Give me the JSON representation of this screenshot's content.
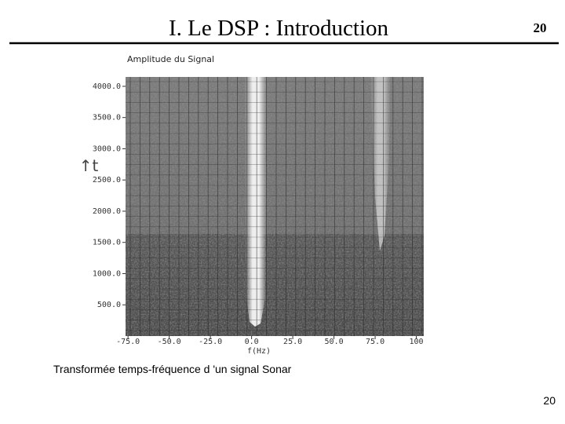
{
  "header": {
    "title": "I. Le DSP : Introduction",
    "slide_number": "20"
  },
  "figure": {
    "title": "Amplitude du Signal",
    "x_label": "f(Hz)",
    "y_label": "↑t",
    "xlim": [
      -76.5,
      104.5
    ],
    "ylim": [
      0,
      4150
    ],
    "xticks": [
      {
        "value": -75,
        "label": "-75.0"
      },
      {
        "value": -50,
        "label": "-50.0"
      },
      {
        "value": -25,
        "label": "-25.0"
      },
      {
        "value": 0,
        "label": "0.0"
      },
      {
        "value": 25,
        "label": "25.0"
      },
      {
        "value": 50,
        "label": "50.0"
      },
      {
        "value": 75,
        "label": "75.0"
      },
      100
    ],
    "yticks": [
      {
        "value": 500,
        "label": "500.0"
      },
      {
        "value": 1000,
        "label": "1000.0"
      },
      {
        "value": 1500,
        "label": "1500.0"
      },
      {
        "value": 2000,
        "label": "2000.0"
      },
      {
        "value": 2500,
        "label": "2500.0"
      },
      {
        "value": 3000,
        "label": "3000.0"
      },
      {
        "value": 3500,
        "label": "3500.0"
      },
      {
        "value": 4000,
        "label": "4000.0"
      }
    ]
  },
  "caption": "Transformée temps-fréquence d 'un signal Sonar",
  "footer": {
    "page_number": "20"
  }
}
